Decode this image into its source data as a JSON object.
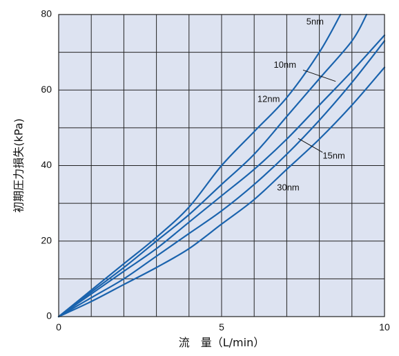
{
  "chart_data": {
    "type": "line",
    "title": "",
    "xlabel": "流　量（L/min）",
    "ylabel": "初期圧力損失(kPa)",
    "xlim": [
      0,
      10
    ],
    "ylim": [
      0,
      80
    ],
    "x_ticks": [
      0,
      5,
      10
    ],
    "y_ticks": [
      0,
      20,
      40,
      60,
      80
    ],
    "x_minor_step": 1,
    "y_minor_step": 10,
    "grid": true,
    "colors": {
      "plot_bg": "#dde3f1",
      "grid": "#222222",
      "line": "#1a63ad"
    },
    "series": [
      {
        "name": "5nm",
        "x": [
          0,
          1,
          2,
          3,
          4,
          5,
          6,
          7,
          8,
          8.65
        ],
        "y": [
          0,
          7,
          14,
          21,
          29,
          40,
          49,
          58,
          70,
          80
        ]
      },
      {
        "name": "10nm",
        "x": [
          0,
          1,
          2,
          3,
          4,
          5,
          6,
          7,
          8,
          9,
          9.45
        ],
        "y": [
          0,
          6.5,
          13,
          20,
          27,
          35,
          43,
          53,
          63,
          73,
          80
        ]
      },
      {
        "name": "12nm",
        "x": [
          0,
          1,
          2,
          3,
          4,
          5,
          6,
          7,
          8,
          9,
          10
        ],
        "y": [
          0,
          6,
          12,
          18,
          25,
          32,
          39,
          47,
          56,
          65,
          74.5
        ]
      },
      {
        "name": "15nm",
        "x": [
          0,
          1,
          2,
          3,
          4,
          5,
          6,
          7,
          8,
          9,
          10
        ],
        "y": [
          0,
          5,
          10,
          16,
          22,
          28,
          35,
          43,
          52,
          62,
          73
        ]
      },
      {
        "name": "30nm",
        "x": [
          0,
          1,
          2,
          3,
          4,
          5,
          6,
          7,
          8,
          9,
          10
        ],
        "y": [
          0,
          4,
          8.5,
          13,
          18,
          24.5,
          31,
          39,
          47,
          56,
          66
        ]
      }
    ],
    "labels": [
      {
        "text": "5nm",
        "x": 7.6,
        "y": 78,
        "anchor": "start",
        "leader": null
      },
      {
        "text": "10nm",
        "x": 6.6,
        "y": 66.5,
        "anchor": "start",
        "leader": [
          [
            7.5,
            65.3
          ],
          [
            8.5,
            62.3
          ]
        ]
      },
      {
        "text": "12nm",
        "x": 6.1,
        "y": 57.5,
        "anchor": "start",
        "leader": null
      },
      {
        "text": "15nm",
        "x": 8.1,
        "y": 42.5,
        "anchor": "start",
        "leader": [
          [
            7.35,
            47.2
          ],
          [
            8.1,
            43.5
          ]
        ]
      },
      {
        "text": "30nm",
        "x": 6.7,
        "y": 34.0,
        "anchor": "start",
        "leader": null
      }
    ]
  }
}
